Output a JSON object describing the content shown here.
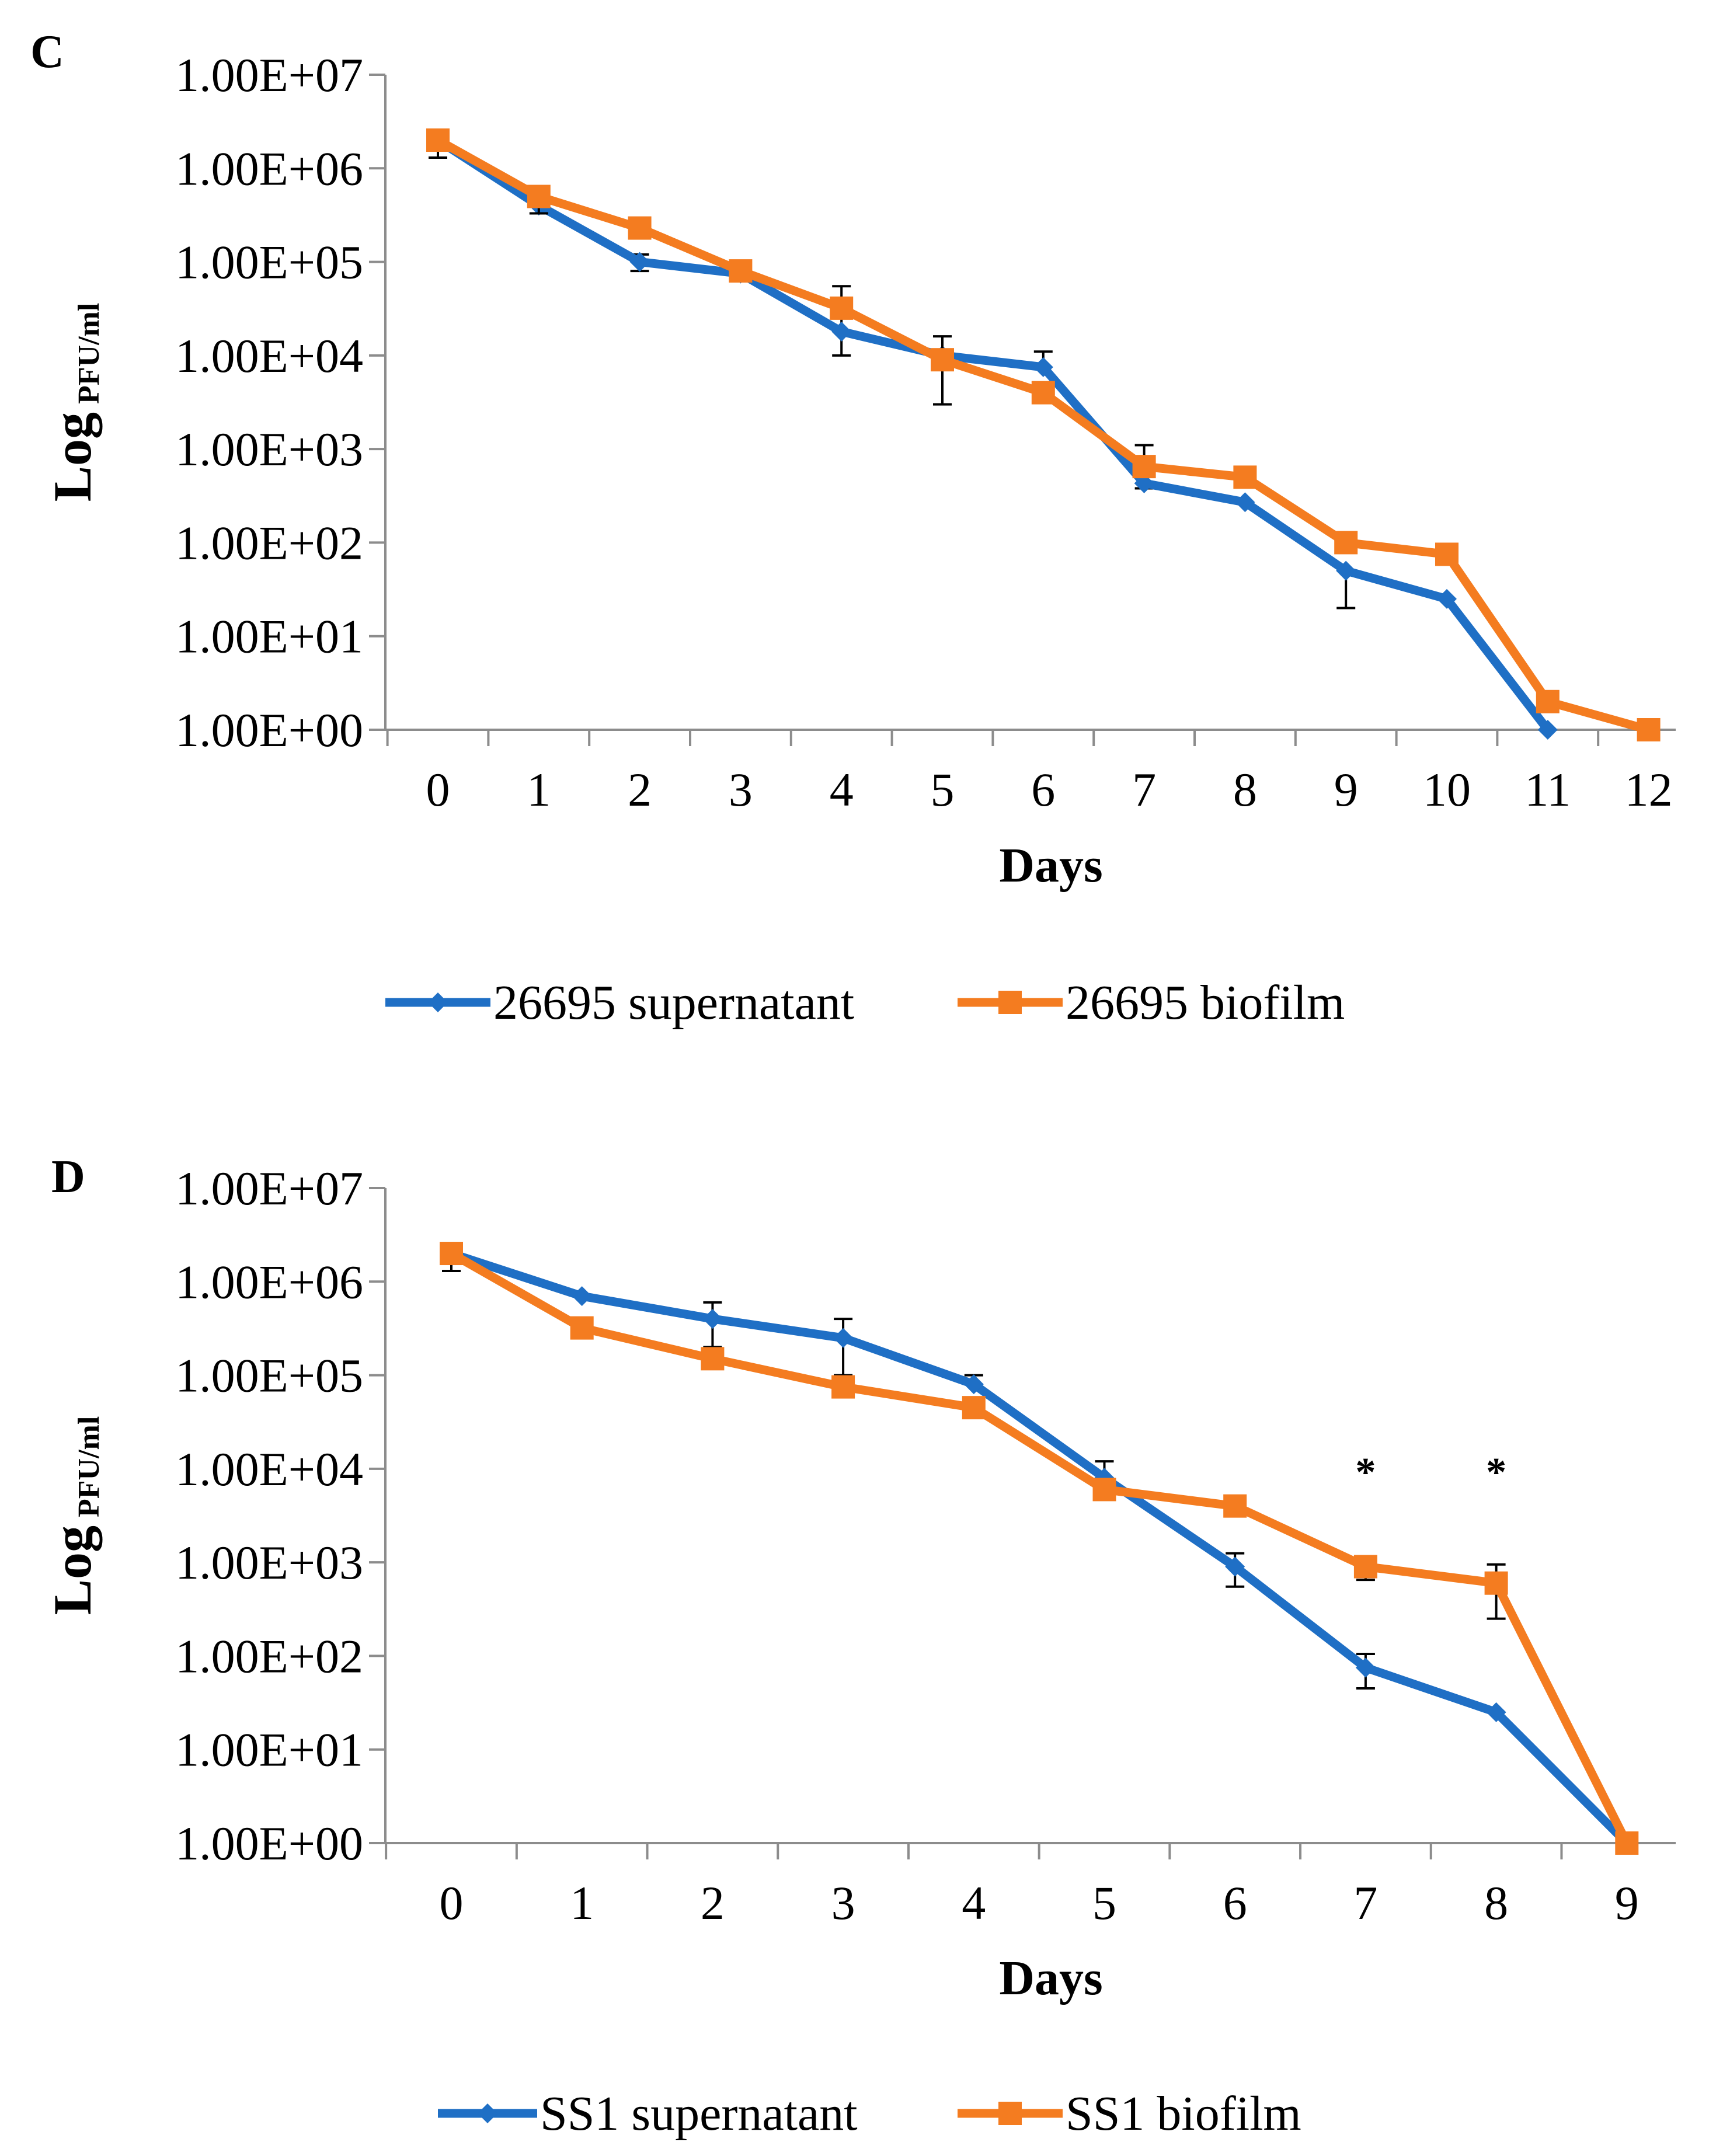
{
  "colors": {
    "blue": "#1f6fc5",
    "orange": "#f47c20"
  },
  "chart_data": [
    {
      "type": "line",
      "panel_label": "C",
      "xlabel": "Days",
      "ylabel": {
        "main": "Log",
        "sub": "PFU/ml"
      },
      "y_scale": "log",
      "y_ticks": [
        "1.00E+07",
        "1.00E+06",
        "1.00E+05",
        "1.00E+04",
        "1.00E+03",
        "1.00E+02",
        "1.00E+01",
        "1.00E+00"
      ],
      "y_tick_exponents": [
        7,
        6,
        5,
        4,
        3,
        2,
        1,
        0
      ],
      "ylim": [
        1,
        10000000
      ],
      "x": [
        "0",
        "1",
        "2",
        "3",
        "4",
        "5",
        "6",
        "7",
        "8",
        "9",
        "10",
        "11",
        "12"
      ],
      "series": [
        {
          "name": "26695 supernatant",
          "color": "#1f6fc5",
          "marker": "diamond",
          "values": [
            2000000,
            400000,
            100000,
            75000,
            18000,
            10000,
            7500,
            430,
            270,
            50,
            25,
            1,
            null
          ],
          "error_low": [
            1300000,
            null,
            80000,
            null,
            10000,
            null,
            null,
            380,
            null,
            20,
            null,
            null,
            null
          ],
          "error_high": [
            2500000,
            null,
            120000,
            null,
            55000,
            null,
            11000,
            1100,
            null,
            null,
            null,
            null,
            null
          ]
        },
        {
          "name": "26695 biofilm",
          "color": "#f47c20",
          "marker": "square",
          "values": [
            2000000,
            500000,
            230000,
            80000,
            32000,
            9000,
            4000,
            650,
            500,
            100,
            75,
            2,
            1
          ],
          "error_low": [
            null,
            330000,
            null,
            null,
            null,
            3000,
            null,
            null,
            null,
            null,
            null,
            null,
            null
          ],
          "error_high": [
            null,
            null,
            null,
            null,
            null,
            16000,
            null,
            null,
            null,
            null,
            null,
            null,
            null
          ]
        }
      ],
      "legend": [
        "26695 supernatant",
        "26695 biofilm"
      ],
      "annotations": []
    },
    {
      "type": "line",
      "panel_label": "D",
      "xlabel": "Days",
      "ylabel": {
        "main": "Log",
        "sub": "PFU/ml"
      },
      "y_scale": "log",
      "y_ticks": [
        "1.00E+07",
        "1.00E+06",
        "1.00E+05",
        "1.00E+04",
        "1.00E+03",
        "1.00E+02",
        "1.00E+01",
        "1.00E+00"
      ],
      "y_tick_exponents": [
        7,
        6,
        5,
        4,
        3,
        2,
        1,
        0
      ],
      "ylim": [
        1,
        10000000
      ],
      "x": [
        "0",
        "1",
        "2",
        "3",
        "4",
        "5",
        "6",
        "7",
        "8",
        "9"
      ],
      "series": [
        {
          "name": "SS1 supernatant",
          "color": "#1f6fc5",
          "marker": "diamond",
          "values": [
            2000000,
            700000,
            400000,
            250000,
            80000,
            8000,
            900,
            75,
            25,
            1
          ],
          "error_low": [
            1300000,
            null,
            200000,
            100000,
            null,
            null,
            550,
            45,
            null,
            null
          ],
          "error_high": [
            2500000,
            null,
            600000,
            400000,
            100000,
            12000,
            1250,
            105,
            null,
            null
          ]
        },
        {
          "name": "SS1 biofilm",
          "color": "#f47c20",
          "marker": "square",
          "values": [
            2000000,
            320000,
            150000,
            75000,
            45000,
            6000,
            4000,
            900,
            600,
            1
          ],
          "error_low": [
            null,
            null,
            null,
            null,
            null,
            null,
            null,
            650,
            250,
            null
          ],
          "error_high": [
            null,
            null,
            null,
            null,
            null,
            null,
            null,
            null,
            950,
            null
          ]
        }
      ],
      "legend": [
        "SS1 supernatant",
        "SS1 biofilm"
      ],
      "annotations": [
        {
          "text": "*",
          "x_index": 7
        },
        {
          "text": "*",
          "x_index": 8
        }
      ]
    }
  ]
}
